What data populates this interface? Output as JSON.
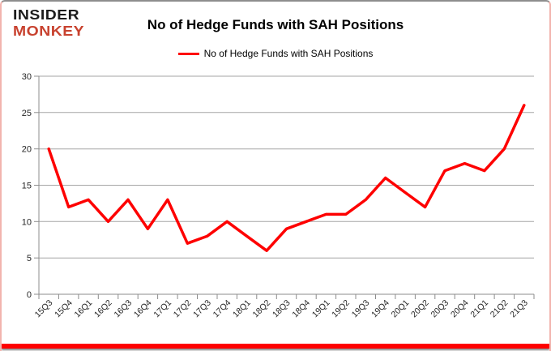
{
  "logo": {
    "line1": "INSIDER",
    "line2": "MONKEY"
  },
  "header": {
    "title": "No of Hedge Funds with SAH Positions",
    "legend_label": "No of Hedge Funds with SAH Positions"
  },
  "colors": {
    "line": "#fe0000",
    "logo_black": "#1c1c1c",
    "logo_red": "#c8422f",
    "grid": "#a6a6a6",
    "axis": "#8c8c8c",
    "text": "#262626",
    "border_top": "#8e8e8e",
    "border_side": "#f2b4ae",
    "bottom_bar": "#fe0000"
  },
  "chart_data": {
    "type": "line",
    "title": "No of Hedge Funds with SAH Positions",
    "xlabel": "",
    "ylabel": "",
    "ylim": [
      0,
      30
    ],
    "ytick_step": 5,
    "grid": true,
    "legend_position": "top",
    "categories": [
      "15Q3",
      "15Q4",
      "16Q1",
      "16Q2",
      "16Q3",
      "16Q4",
      "17Q1",
      "17Q2",
      "17Q3",
      "17Q4",
      "18Q1",
      "18Q2",
      "18Q3",
      "18Q4",
      "19Q1",
      "19Q2",
      "19Q3",
      "19Q4",
      "20Q1",
      "20Q2",
      "20Q3",
      "20Q4",
      "21Q1",
      "21Q2",
      "21Q3"
    ],
    "series": [
      {
        "name": "No of Hedge Funds with SAH Positions",
        "color": "#fe0000",
        "values": [
          20,
          12,
          13,
          10,
          13,
          9,
          13,
          7,
          8,
          10,
          8,
          6,
          9,
          10,
          11,
          11,
          13,
          16,
          14,
          12,
          17,
          18,
          17,
          20,
          26
        ]
      }
    ]
  }
}
